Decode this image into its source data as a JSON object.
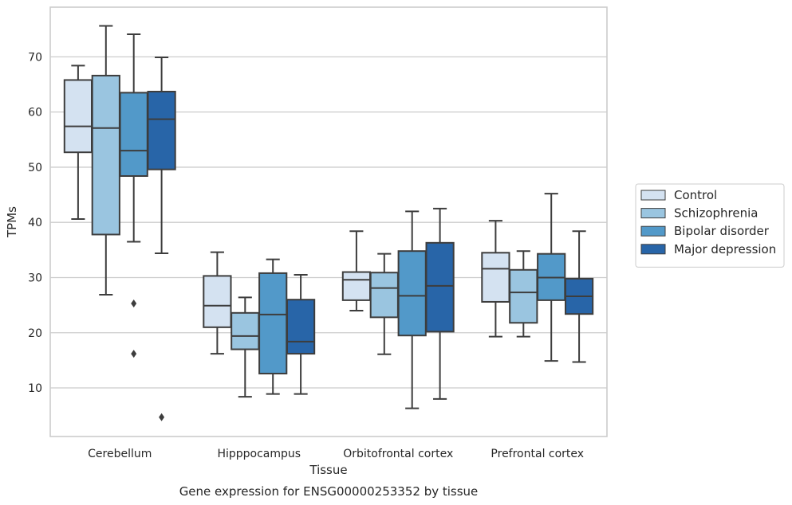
{
  "chart_data": {
    "type": "box",
    "title": "",
    "caption": "Gene expression for ENSG00000253352 by tissue",
    "xlabel": "Tissue",
    "ylabel": "TPMs",
    "ylim": [
      1.2,
      79
    ],
    "yticks": [
      10,
      20,
      30,
      40,
      50,
      60,
      70
    ],
    "grid": "horizontal",
    "legend_position": "right",
    "categories": [
      "Cerebellum",
      "Hipppocampus",
      "Orbitofrontal cortex",
      "Prefrontal cortex"
    ],
    "series": [
      {
        "name": "Control",
        "color": "#d4e2f1",
        "boxes": [
          {
            "whislo": 40.6,
            "q1": 52.7,
            "med": 57.4,
            "q3": 65.8,
            "whishi": 68.4,
            "fliers": []
          },
          {
            "whislo": 16.2,
            "q1": 21.0,
            "med": 24.9,
            "q3": 30.3,
            "whishi": 34.6,
            "fliers": []
          },
          {
            "whislo": 24.0,
            "q1": 25.9,
            "med": 29.6,
            "q3": 31.0,
            "whishi": 38.4,
            "fliers": []
          },
          {
            "whislo": 19.3,
            "q1": 25.6,
            "med": 31.6,
            "q3": 34.5,
            "whishi": 40.3,
            "fliers": []
          }
        ]
      },
      {
        "name": "Schizophrenia",
        "color": "#9ac5e0",
        "boxes": [
          {
            "whislo": 26.9,
            "q1": 37.8,
            "med": 57.1,
            "q3": 66.6,
            "whishi": 75.6,
            "fliers": []
          },
          {
            "whislo": 8.4,
            "q1": 17.0,
            "med": 19.4,
            "q3": 23.6,
            "whishi": 26.4,
            "fliers": []
          },
          {
            "whislo": 16.1,
            "q1": 22.8,
            "med": 28.1,
            "q3": 30.9,
            "whishi": 34.3,
            "fliers": []
          },
          {
            "whislo": 19.3,
            "q1": 21.8,
            "med": 27.3,
            "q3": 31.4,
            "whishi": 34.8,
            "fliers": []
          }
        ]
      },
      {
        "name": "Bipolar disorder",
        "color": "#5299c9",
        "boxes": [
          {
            "whislo": 36.5,
            "q1": 48.4,
            "med": 53.0,
            "q3": 63.5,
            "whishi": 74.1,
            "fliers": [
              25.3,
              16.2
            ]
          },
          {
            "whislo": 8.9,
            "q1": 12.6,
            "med": 23.3,
            "q3": 30.8,
            "whishi": 33.3,
            "fliers": []
          },
          {
            "whislo": 6.3,
            "q1": 19.5,
            "med": 26.7,
            "q3": 34.8,
            "whishi": 42.0,
            "fliers": []
          },
          {
            "whislo": 14.9,
            "q1": 25.9,
            "med": 30.0,
            "q3": 34.3,
            "whishi": 45.2,
            "fliers": []
          }
        ]
      },
      {
        "name": "Major depression",
        "color": "#2865a8",
        "boxes": [
          {
            "whislo": 34.4,
            "q1": 49.6,
            "med": 58.7,
            "q3": 63.7,
            "whishi": 69.9,
            "fliers": [
              4.7
            ]
          },
          {
            "whislo": 8.9,
            "q1": 16.2,
            "med": 18.4,
            "q3": 26.0,
            "whishi": 30.5,
            "fliers": []
          },
          {
            "whislo": 8.0,
            "q1": 20.2,
            "med": 28.5,
            "q3": 36.3,
            "whishi": 42.5,
            "fliers": []
          },
          {
            "whislo": 14.7,
            "q1": 23.4,
            "med": 26.6,
            "q3": 29.8,
            "whishi": 38.4,
            "fliers": []
          }
        ]
      }
    ]
  }
}
